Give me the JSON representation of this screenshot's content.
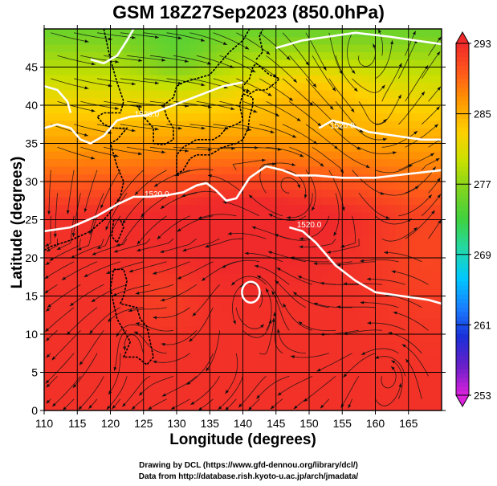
{
  "title": "GSM 18Z27Sep2023 (850.0hPa)",
  "credits": {
    "line1": "Drawing by DCL (https://www.gfd-dennou.org/library/dcl/)",
    "line2": "Data from http://database.rish.kyoto-u.ac.jp/arch/jmadata/"
  },
  "chart_data": {
    "type": "heatmap",
    "title": "GSM 18Z27Sep2023 (850.0hPa)",
    "xlabel": "Longitude (degrees)",
    "ylabel": "Latitude (degrees)",
    "xlim": [
      110,
      170
    ],
    "ylim": [
      0,
      50
    ],
    "x_ticks": [
      110,
      115,
      120,
      125,
      130,
      135,
      140,
      145,
      150,
      155,
      160,
      165
    ],
    "y_ticks": [
      0,
      5,
      10,
      15,
      20,
      25,
      30,
      35,
      40,
      45
    ],
    "grid": true,
    "colorbar": {
      "min": 253,
      "max": 293,
      "ticks": [
        253,
        261,
        269,
        277,
        285,
        293
      ],
      "colors": [
        "#dd22dd",
        "#6a1fc8",
        "#1a2fd8",
        "#1a7fff",
        "#00c8ff",
        "#22d8a8",
        "#3fd13f",
        "#7ed321",
        "#c8e000",
        "#ffd000",
        "#ff9a00",
        "#ff5a1a",
        "#f02a2a"
      ]
    },
    "contour_labels": [
      {
        "text": "1520.0",
        "lon": 125.5,
        "lat": 38.5
      },
      {
        "text": "1520.0",
        "lon": 127,
        "lat": 28
      },
      {
        "text": "1520.0",
        "lon": 150,
        "lat": 24
      },
      {
        "text": "1520.0",
        "lon": 155,
        "lat": 37
      }
    ],
    "contours": [
      [
        [
          110,
          23.5
        ],
        [
          114,
          24
        ],
        [
          118,
          25.5
        ],
        [
          121,
          27
        ],
        [
          123.5,
          28
        ],
        [
          126,
          28
        ],
        [
          128.5,
          28.2
        ],
        [
          131,
          28.6
        ],
        [
          133,
          29.5
        ],
        [
          134.5,
          29.8
        ],
        [
          136,
          28.8
        ],
        [
          137.5,
          27.5
        ],
        [
          139,
          27.8
        ],
        [
          141,
          30.5
        ],
        [
          143.5,
          32
        ],
        [
          146,
          31.5
        ],
        [
          148,
          30.8
        ],
        [
          151,
          30.8
        ],
        [
          155,
          30.5
        ],
        [
          160,
          30.5
        ],
        [
          165,
          31
        ],
        [
          170,
          31.5
        ]
      ],
      [
        [
          110,
          37
        ],
        [
          112,
          37.5
        ],
        [
          114,
          37
        ],
        [
          115.5,
          35.5
        ],
        [
          117,
          35
        ],
        [
          119,
          36
        ],
        [
          121,
          38
        ],
        [
          123,
          38.5
        ],
        [
          125.5,
          38.7
        ],
        [
          128,
          39.5
        ],
        [
          131,
          40.5
        ],
        [
          134,
          41.5
        ],
        [
          137,
          42.5
        ],
        [
          140,
          43
        ]
      ],
      [
        [
          117,
          46
        ],
        [
          119,
          45.5
        ],
        [
          121,
          46.5
        ],
        [
          122.5,
          48.5
        ],
        [
          123.5,
          50
        ]
      ],
      [
        [
          147,
          24
        ],
        [
          149,
          23.5
        ],
        [
          151,
          22
        ],
        [
          154,
          19
        ],
        [
          157,
          17
        ],
        [
          160,
          15.5
        ],
        [
          164,
          15
        ],
        [
          168,
          14.5
        ],
        [
          170,
          14
        ]
      ],
      [
        [
          151.5,
          37
        ],
        [
          153.5,
          38
        ],
        [
          156,
          37.5
        ],
        [
          159,
          36.5
        ],
        [
          163,
          36
        ],
        [
          167,
          35.5
        ],
        [
          170,
          35.5
        ]
      ],
      [
        [
          145,
          47.5
        ],
        [
          149,
          48.5
        ],
        [
          153,
          49
        ],
        [
          157,
          49.5
        ],
        [
          162,
          49
        ],
        [
          166,
          48.5
        ],
        [
          170,
          48
        ]
      ],
      [
        [
          110,
          42.5
        ],
        [
          112,
          42
        ],
        [
          113.5,
          40.5
        ],
        [
          114,
          39
        ]
      ]
    ],
    "cyclone": {
      "lon": 141.2,
      "lat": 15.5
    }
  }
}
